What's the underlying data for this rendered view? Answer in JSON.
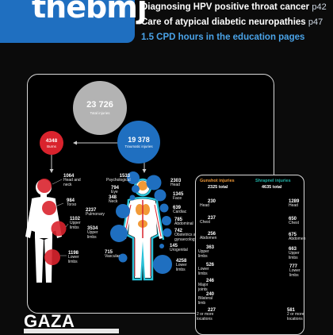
{
  "masthead": {
    "logo": "thebmj"
  },
  "headlines": [
    {
      "text": "Diagnosing HPV positive throat cancer",
      "page": "p42"
    },
    {
      "text": "Care of atypical diabetic neuropathies",
      "page": "p47"
    },
    {
      "text": "1.5 CPD hours in the education pages",
      "page": ""
    }
  ],
  "total": {
    "value": "23 726",
    "label": "Total injuries"
  },
  "burns": {
    "value": "4348",
    "label": "Burns"
  },
  "traumatic": {
    "value": "19 378",
    "label": "Traumatic injuries"
  },
  "burn_sites": [
    {
      "value": "1064",
      "label": "Head and neck"
    },
    {
      "value": "984",
      "label": "Torso"
    },
    {
      "value": "1102",
      "label": "Upper limbs"
    },
    {
      "value": "1198",
      "label": "Lower limbs"
    }
  ],
  "trauma_left": [
    {
      "value": "1533",
      "label": "Psychological"
    },
    {
      "value": "794",
      "label": "Eye"
    },
    {
      "value": "348",
      "label": "Neck"
    },
    {
      "value": "2237",
      "label": "Pulmonary"
    },
    {
      "value": "3534",
      "label": "Upper limbs"
    },
    {
      "value": "715",
      "label": "Vascular"
    }
  ],
  "trauma_right": [
    {
      "value": "2303",
      "label": "Head"
    },
    {
      "value": "1345",
      "label": "Face"
    },
    {
      "value": "639",
      "label": "Cardiac"
    },
    {
      "value": "785",
      "label": "Abdominal"
    },
    {
      "value": "742",
      "label": "Obstetrics and gynaecology"
    },
    {
      "value": "145",
      "label": "Urogenital"
    },
    {
      "value": "4258",
      "label": "Lower limbs"
    }
  ],
  "gunshot": {
    "title": "Gunshot injuries",
    "total": "2325 total",
    "items": [
      {
        "value": "230",
        "label": "Head"
      },
      {
        "value": "237",
        "label": "Chest"
      },
      {
        "value": "256",
        "label": "Abdomen"
      },
      {
        "value": "363",
        "label": "Upper limbs"
      },
      {
        "value": "526",
        "label": "Lower limbs"
      },
      {
        "value": "246",
        "label": "Major joints"
      },
      {
        "value": "240",
        "label": "Bilateral limb"
      },
      {
        "value": "227",
        "label": "2 or more locations"
      }
    ]
  },
  "shrapnel": {
    "title": "Shrapnel injuries",
    "total": "4635 total",
    "items": [
      {
        "value": "1289",
        "label": "Head"
      },
      {
        "value": "650",
        "label": "Chest"
      },
      {
        "value": "675",
        "label": "Abdomen"
      },
      {
        "value": "663",
        "label": "Upper limbs"
      },
      {
        "value": "777",
        "label": "Lower limbs"
      },
      {
        "value": "581",
        "label": "2 or more locations"
      }
    ]
  },
  "colors": {
    "grey": "#b3b3b3",
    "red": "#d9232d",
    "blue": "#1f6fc0",
    "orange": "#f29a38",
    "teal": "#1fb3a8"
  },
  "cover_title": "GAZA"
}
